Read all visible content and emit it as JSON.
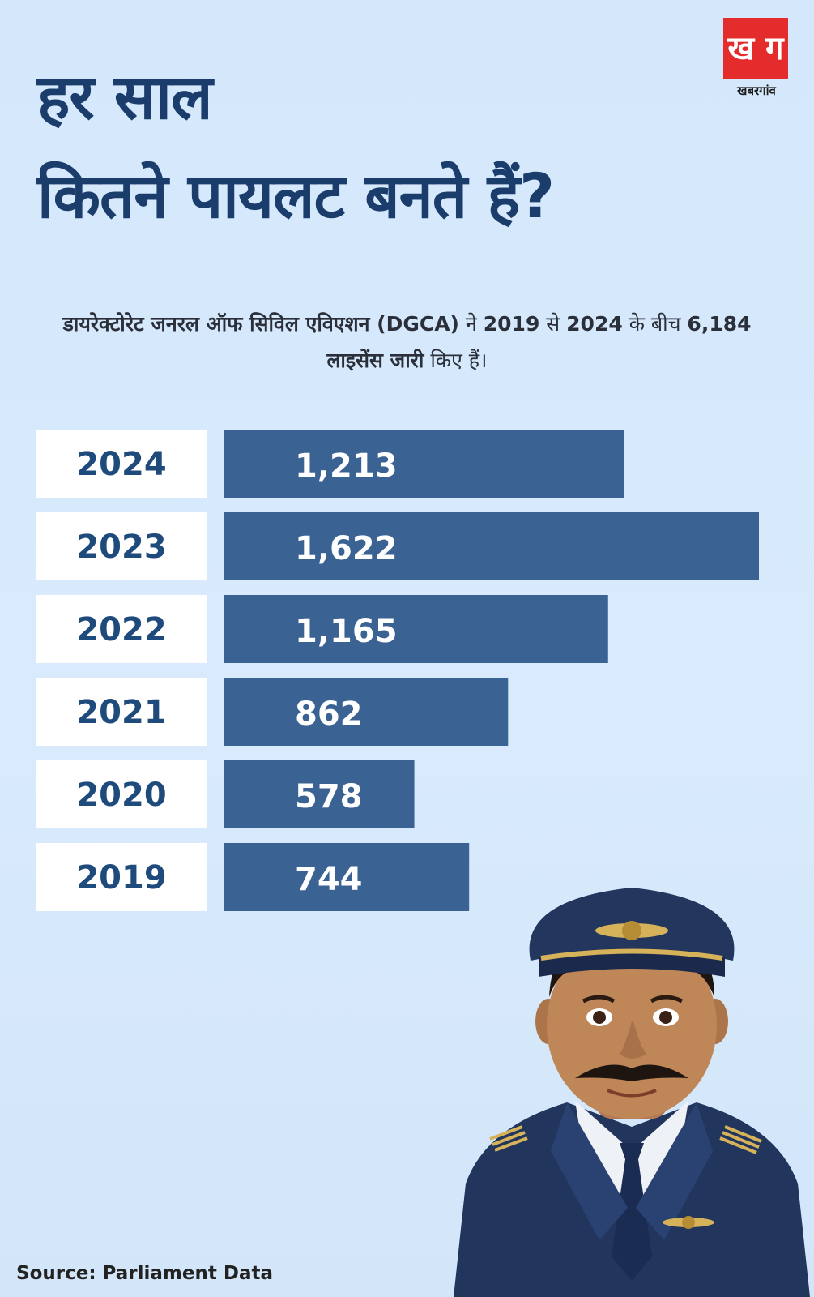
{
  "header": {
    "title_line1": "हर साल",
    "title_line2": "कितने पायलट बनते हैं?"
  },
  "logo": {
    "mark": "ख ग",
    "name": "खबरगांव",
    "color": "#e42c2c"
  },
  "subtitle": {
    "part1": "डायरेक्टोरेट जनरल ऑफ सिविल एविएशन (DGCA)",
    "part2": " ने ",
    "part3": "2019",
    "part4": " से ",
    "part5": "2024",
    "part6": " के बीच ",
    "part7": "6,184 लाइसेंस जारी",
    "part8": " किए हैं।"
  },
  "source": "Source: Parliament Data",
  "colors": {
    "bar": "#3a6293",
    "label_box": "#ffffff",
    "year_text": "#1e4a7c",
    "value_text": "#ffffff",
    "title": "#1b3d6b"
  },
  "chart_data": {
    "type": "bar",
    "orientation": "horizontal",
    "categories": [
      "2024",
      "2023",
      "2022",
      "2021",
      "2020",
      "2019"
    ],
    "values": [
      1213,
      1622,
      1165,
      862,
      578,
      744
    ],
    "value_labels": [
      "1,213",
      "1,622",
      "1,165",
      "862",
      "578",
      "744"
    ],
    "title": "",
    "xlabel": "",
    "ylabel": "",
    "grid": false
  }
}
